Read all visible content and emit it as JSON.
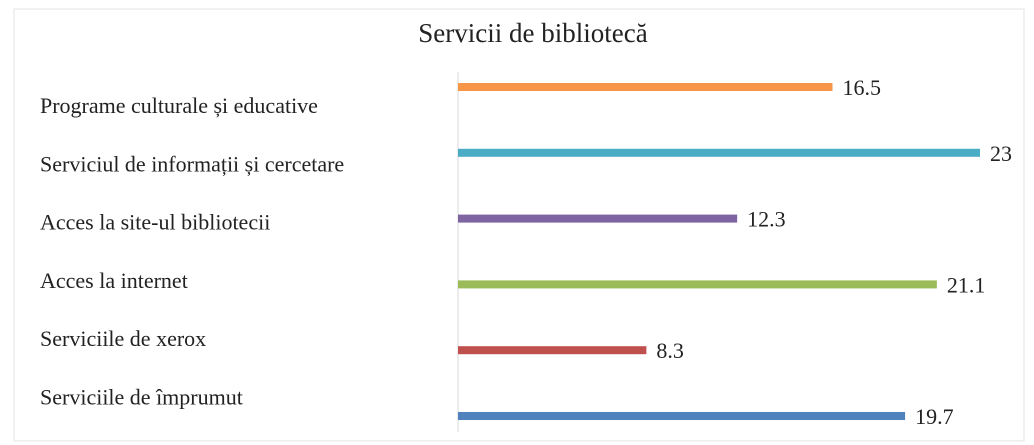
{
  "chart_data": {
    "type": "bar",
    "orientation": "horizontal",
    "title": "Servicii de bibliotecă",
    "categories": [
      "Programe culturale și educative",
      "Serviciul de informații și cercetare",
      "Acces la site-ul bibliotecii",
      "Acces la internet",
      "Serviciile de xerox",
      "Serviciile de împrumut"
    ],
    "values": [
      16.5,
      23,
      12.3,
      21.1,
      8.3,
      19.7
    ],
    "colors": [
      "#f79646",
      "#4bacc6",
      "#8064a2",
      "#9bbb59",
      "#c0504d",
      "#4f81bd"
    ]
  }
}
